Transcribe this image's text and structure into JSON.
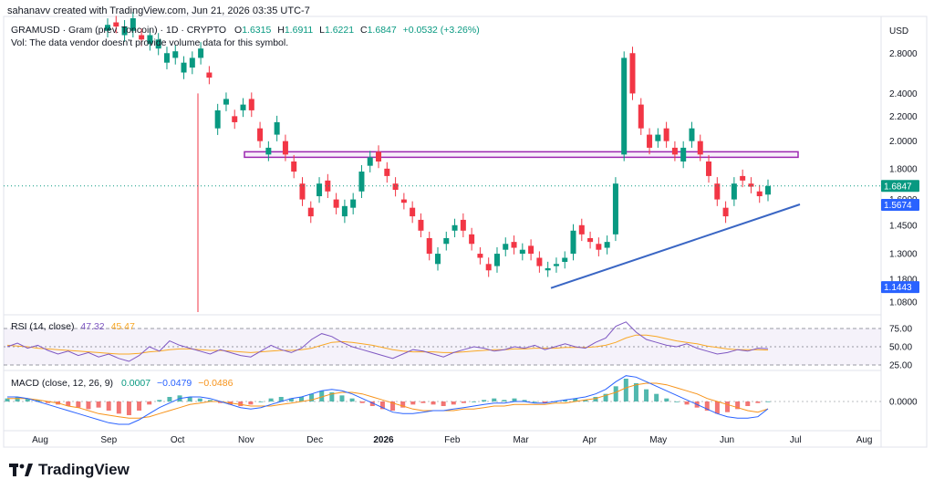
{
  "header": {
    "credit": "sahanavv created with TradingView.com, Jun 21, 2026 03:35 UTC-7",
    "symbol": "GRAMUSD · Gram (prev. Toncoin) · 1D · CRYPTO",
    "o_label": "O",
    "o_value": "1.6315",
    "h_label": "H",
    "h_value": "1.6911",
    "l_label": "L",
    "l_value": "1.6221",
    "c_label": "C",
    "c_value": "1.6847",
    "change": "+0.0532 (+3.26%)",
    "vol_note": "Vol: The data vendor doesn't provide volume data for this symbol."
  },
  "currency": "USD",
  "price_badges": [
    {
      "label": "1.6847",
      "value": 1.6847,
      "color": "#089981"
    },
    {
      "label": "1.5674",
      "value": 1.5674,
      "color": "#2962ff"
    },
    {
      "label": "1.1443",
      "value": 1.1443,
      "color": "#2962ff"
    }
  ],
  "rsi_legend": {
    "name": "RSI (14, close)",
    "value1": "47.32",
    "value2": "45.47"
  },
  "macd_legend": {
    "name": "MACD (close, 12, 26, 9)",
    "v1": "0.0007",
    "v2": "−0.0479",
    "v3": "−0.0486"
  },
  "brand": "TradingView",
  "chart_data": {
    "type": "candlestick",
    "price_scale": "log",
    "y_ticks": [
      "2.8000",
      "2.4000",
      "2.2000",
      "2.0000",
      "1.8000",
      "1.6000",
      "1.4500",
      "1.3000",
      "1.1800",
      "1.0800"
    ],
    "y_tick_values": [
      2.8,
      2.4,
      2.2,
      2.0,
      1.8,
      1.6,
      1.45,
      1.3,
      1.18,
      1.08
    ],
    "ylim": [
      1.04,
      3.2
    ],
    "x_ticks": [
      "Aug",
      "Sep",
      "Oct",
      "Nov",
      "Dec",
      "2026",
      "Feb",
      "Mar",
      "Apr",
      "May",
      "Jun",
      "Jul",
      "Aug"
    ],
    "x_tick_bold": [
      false,
      false,
      false,
      false,
      false,
      true,
      false,
      false,
      false,
      false,
      false,
      false,
      false
    ],
    "resistance_zone": {
      "low": 1.88,
      "high": 1.92
    },
    "support_line": {
      "from": {
        "x": "Mar 21",
        "y": 1.14
      },
      "to": {
        "x": "Jul 1",
        "y": 1.57
      }
    },
    "last_price": 1.6847,
    "price_path": [
      [
        3.05,
        3.12
      ],
      [
        3.15,
        3.1
      ],
      [
        3.0,
        3.1
      ],
      [
        3.05,
        3.2
      ],
      [
        3.0,
        2.95
      ],
      [
        2.9,
        3.0
      ],
      [
        2.85,
        2.95
      ],
      [
        2.7,
        2.8
      ],
      [
        2.75,
        2.82
      ],
      [
        2.6,
        2.7
      ],
      [
        2.65,
        2.75
      ],
      [
        2.75,
        2.85
      ],
      [
        2.6,
        2.55
      ],
      [
        2.1,
        2.25
      ],
      [
        2.3,
        2.35
      ],
      [
        2.2,
        2.15
      ],
      [
        2.25,
        2.3
      ],
      [
        2.35,
        2.25
      ],
      [
        2.1,
        2.0
      ],
      [
        1.9,
        1.95
      ],
      [
        2.05,
        2.15
      ],
      [
        2.0,
        1.9
      ],
      [
        1.85,
        1.78
      ],
      [
        1.7,
        1.6
      ],
      [
        1.55,
        1.5
      ],
      [
        1.62,
        1.7
      ],
      [
        1.72,
        1.65
      ],
      [
        1.6,
        1.55
      ],
      [
        1.5,
        1.56
      ],
      [
        1.55,
        1.6
      ],
      [
        1.65,
        1.78
      ],
      [
        1.82,
        1.88
      ],
      [
        1.92,
        1.85
      ],
      [
        1.8,
        1.75
      ],
      [
        1.7,
        1.66
      ],
      [
        1.6,
        1.58
      ],
      [
        1.55,
        1.5
      ],
      [
        1.48,
        1.42
      ],
      [
        1.38,
        1.3
      ],
      [
        1.25,
        1.3
      ],
      [
        1.35,
        1.38
      ],
      [
        1.42,
        1.45
      ],
      [
        1.48,
        1.42
      ],
      [
        1.4,
        1.35
      ],
      [
        1.3,
        1.28
      ],
      [
        1.25,
        1.22
      ],
      [
        1.24,
        1.3
      ],
      [
        1.32,
        1.35
      ],
      [
        1.36,
        1.33
      ],
      [
        1.3,
        1.32
      ],
      [
        1.34,
        1.3
      ],
      [
        1.28,
        1.24
      ],
      [
        1.22,
        1.23
      ],
      [
        1.24,
        1.25
      ],
      [
        1.26,
        1.28
      ],
      [
        1.3,
        1.42
      ],
      [
        1.45,
        1.4
      ],
      [
        1.38,
        1.36
      ],
      [
        1.35,
        1.32
      ],
      [
        1.33,
        1.36
      ],
      [
        1.4,
        1.7
      ],
      [
        1.9,
        2.75
      ],
      [
        2.8,
        2.4
      ],
      [
        2.3,
        2.1
      ],
      [
        2.05,
        1.95
      ],
      [
        2.0,
        2.05
      ],
      [
        2.1,
        2.0
      ],
      [
        1.95,
        1.9
      ],
      [
        1.85,
        1.95
      ],
      [
        2.0,
        2.1
      ],
      [
        2.0,
        1.9
      ],
      [
        1.85,
        1.75
      ],
      [
        1.7,
        1.6
      ],
      [
        1.55,
        1.5
      ],
      [
        1.6,
        1.7
      ],
      [
        1.75,
        1.72
      ],
      [
        1.7,
        1.68
      ],
      [
        1.65,
        1.62
      ],
      [
        1.63,
        1.6847
      ]
    ],
    "rsi": {
      "levels": [
        75,
        50,
        25
      ],
      "ylim": [
        20,
        90
      ],
      "rsi_path": [
        50,
        55,
        48,
        52,
        45,
        40,
        44,
        38,
        42,
        36,
        40,
        34,
        30,
        38,
        50,
        44,
        58,
        52,
        48,
        44,
        40,
        46,
        42,
        38,
        36,
        44,
        52,
        46,
        42,
        48,
        60,
        68,
        64,
        56,
        50,
        46,
        42,
        38,
        34,
        40,
        46,
        44,
        40,
        36,
        42,
        46,
        50,
        48,
        44,
        46,
        50,
        48,
        52,
        46,
        50,
        54,
        50,
        48,
        56,
        62,
        78,
        84,
        70,
        60,
        56,
        52,
        50,
        54,
        48,
        44,
        40,
        42,
        46,
        44,
        48,
        47.32
      ],
      "ma_path": [
        52,
        51,
        50,
        48,
        47,
        46,
        45,
        44,
        43,
        42,
        41,
        40,
        40,
        41,
        43,
        44,
        46,
        47,
        47,
        46,
        45,
        45,
        44,
        43,
        42,
        43,
        44,
        45,
        45,
        46,
        48,
        52,
        56,
        57,
        56,
        54,
        52,
        49,
        46,
        44,
        43,
        43,
        43,
        42,
        42,
        43,
        44,
        45,
        46,
        46,
        47,
        47,
        48,
        48,
        48,
        49,
        49,
        49,
        50,
        52,
        56,
        62,
        66,
        66,
        64,
        61,
        58,
        56,
        54,
        51,
        49,
        47,
        46,
        46,
        46,
        45.47
      ]
    },
    "macd": {
      "zero_label": "0.0000",
      "ylim": [
        -0.18,
        0.18
      ],
      "hist": [
        0.02,
        0.03,
        0.02,
        0.01,
        -0.01,
        -0.02,
        -0.03,
        -0.04,
        -0.05,
        -0.04,
        -0.06,
        -0.08,
        -0.09,
        -0.06,
        -0.02,
        0.01,
        0.03,
        0.04,
        0.03,
        0.02,
        0.01,
        -0.01,
        -0.02,
        -0.03,
        -0.02,
        0.0,
        0.02,
        0.03,
        0.02,
        0.03,
        0.05,
        0.07,
        0.06,
        0.04,
        0.02,
        -0.01,
        -0.03,
        -0.05,
        -0.06,
        -0.04,
        -0.02,
        -0.01,
        -0.02,
        -0.03,
        -0.02,
        -0.01,
        0.0,
        0.01,
        0.02,
        0.01,
        0.02,
        0.01,
        0.0,
        -0.01,
        0.0,
        0.01,
        0.02,
        0.01,
        0.03,
        0.05,
        0.1,
        0.15,
        0.12,
        0.08,
        0.05,
        0.02,
        0.0,
        -0.02,
        -0.04,
        -0.06,
        -0.08,
        -0.07,
        -0.05,
        -0.03,
        -0.01,
        0.0007
      ],
      "macd_path": [
        0.03,
        0.03,
        0.02,
        0.0,
        -0.02,
        -0.04,
        -0.06,
        -0.08,
        -0.1,
        -0.12,
        -0.14,
        -0.15,
        -0.15,
        -0.12,
        -0.08,
        -0.04,
        -0.01,
        0.02,
        0.03,
        0.03,
        0.02,
        0.0,
        -0.02,
        -0.04,
        -0.05,
        -0.04,
        -0.02,
        0.0,
        0.02,
        0.03,
        0.05,
        0.07,
        0.08,
        0.07,
        0.05,
        0.02,
        -0.01,
        -0.04,
        -0.07,
        -0.08,
        -0.08,
        -0.07,
        -0.06,
        -0.06,
        -0.05,
        -0.04,
        -0.03,
        -0.02,
        -0.01,
        -0.01,
        0.0,
        0.0,
        -0.01,
        -0.01,
        0.0,
        0.01,
        0.02,
        0.03,
        0.05,
        0.08,
        0.13,
        0.17,
        0.16,
        0.13,
        0.1,
        0.07,
        0.04,
        0.01,
        -0.02,
        -0.05,
        -0.08,
        -0.1,
        -0.11,
        -0.11,
        -0.1,
        -0.0479
      ],
      "signal_path": [
        0.02,
        0.02,
        0.02,
        0.01,
        0.0,
        -0.01,
        -0.03,
        -0.04,
        -0.06,
        -0.08,
        -0.09,
        -0.1,
        -0.11,
        -0.11,
        -0.1,
        -0.08,
        -0.06,
        -0.04,
        -0.02,
        -0.01,
        0.0,
        0.0,
        -0.01,
        -0.02,
        -0.03,
        -0.03,
        -0.03,
        -0.02,
        -0.01,
        0.0,
        0.01,
        0.03,
        0.05,
        0.06,
        0.06,
        0.05,
        0.03,
        0.01,
        -0.01,
        -0.03,
        -0.05,
        -0.06,
        -0.06,
        -0.06,
        -0.06,
        -0.05,
        -0.05,
        -0.04,
        -0.03,
        -0.03,
        -0.02,
        -0.02,
        -0.02,
        -0.02,
        -0.01,
        -0.01,
        0.0,
        0.01,
        0.02,
        0.04,
        0.06,
        0.09,
        0.11,
        0.12,
        0.12,
        0.11,
        0.09,
        0.07,
        0.05,
        0.02,
        0.0,
        -0.02,
        -0.04,
        -0.06,
        -0.07,
        -0.0486
      ]
    }
  }
}
